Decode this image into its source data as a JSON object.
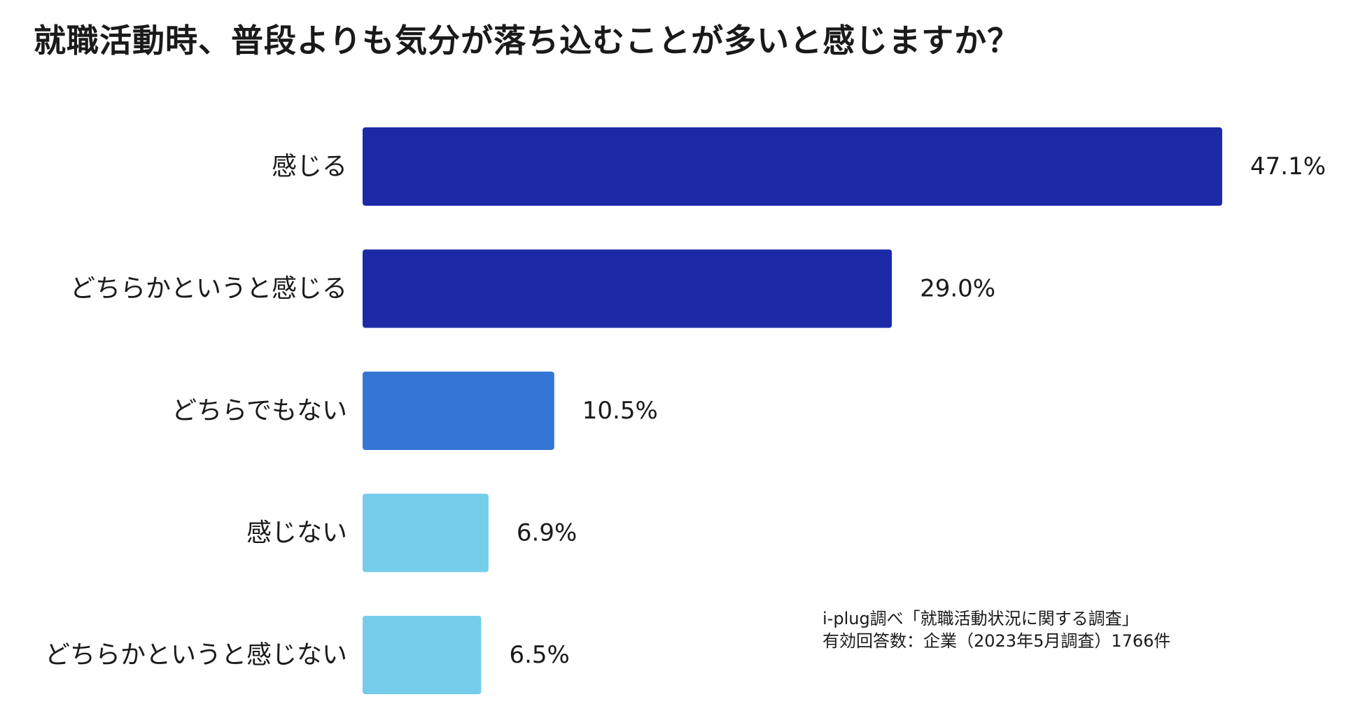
{
  "chart_data": {
    "type": "bar",
    "orientation": "horizontal",
    "title": "就職活動時、普段よりも気分が落ち込むことが多いと感じますか？",
    "categories": [
      "感じる",
      "どちらかというと感じる",
      "どちらでもない",
      "感じない",
      "どちらかというと感じない"
    ],
    "values": [
      47.1,
      29.0,
      10.5,
      6.9,
      6.5
    ],
    "value_labels": [
      "47.1%",
      "29.0%",
      "10.5%",
      "6.9%",
      "6.5%"
    ],
    "colors": [
      "#1c2aa8",
      "#1c2aa8",
      "#3476d6",
      "#75cdec",
      "#75cdec"
    ],
    "xlim": [
      0,
      47.1
    ],
    "grid": false,
    "legend": "none"
  },
  "source": {
    "line1": "i-plug調べ「就職活動状況に関する調査」",
    "line2": "有効回答数：企業（2023年5月調査）1766件"
  }
}
